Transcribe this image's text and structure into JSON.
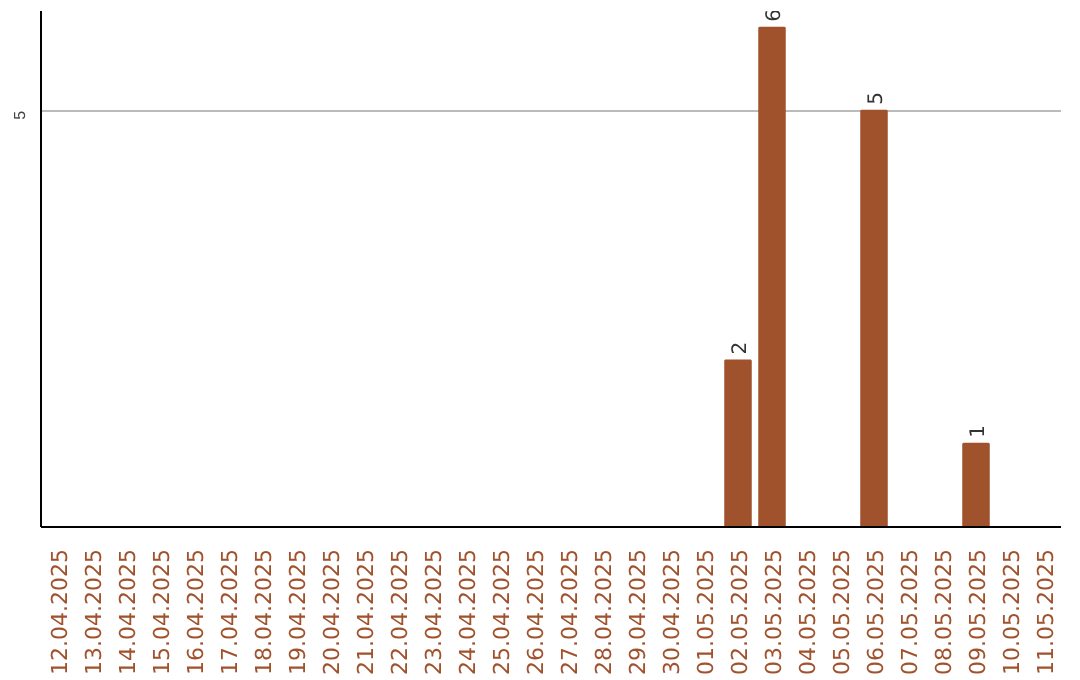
{
  "chart_data": {
    "type": "bar",
    "categories": [
      "12.04.2025",
      "13.04.2025",
      "14.04.2025",
      "15.04.2025",
      "16.04.2025",
      "17.04.2025",
      "18.04.2025",
      "19.04.2025",
      "20.04.2025",
      "21.04.2025",
      "22.04.2025",
      "23.04.2025",
      "24.04.2025",
      "25.04.2025",
      "26.04.2025",
      "27.04.2025",
      "28.04.2025",
      "29.04.2025",
      "30.04.2025",
      "01.05.2025",
      "02.05.2025",
      "03.05.2025",
      "04.05.2025",
      "05.05.2025",
      "06.05.2025",
      "07.05.2025",
      "08.05.2025",
      "09.05.2025",
      "10.05.2025",
      "11.05.2025"
    ],
    "values": [
      null,
      null,
      null,
      null,
      null,
      null,
      null,
      null,
      null,
      null,
      null,
      null,
      null,
      null,
      null,
      null,
      null,
      null,
      null,
      null,
      2,
      6,
      null,
      null,
      5,
      null,
      null,
      1,
      null,
      null
    ],
    "color": "#a0522d",
    "ylim": [
      0,
      6.2
    ],
    "yticks": [
      5
    ],
    "grid": "y",
    "data_labels": true
  }
}
